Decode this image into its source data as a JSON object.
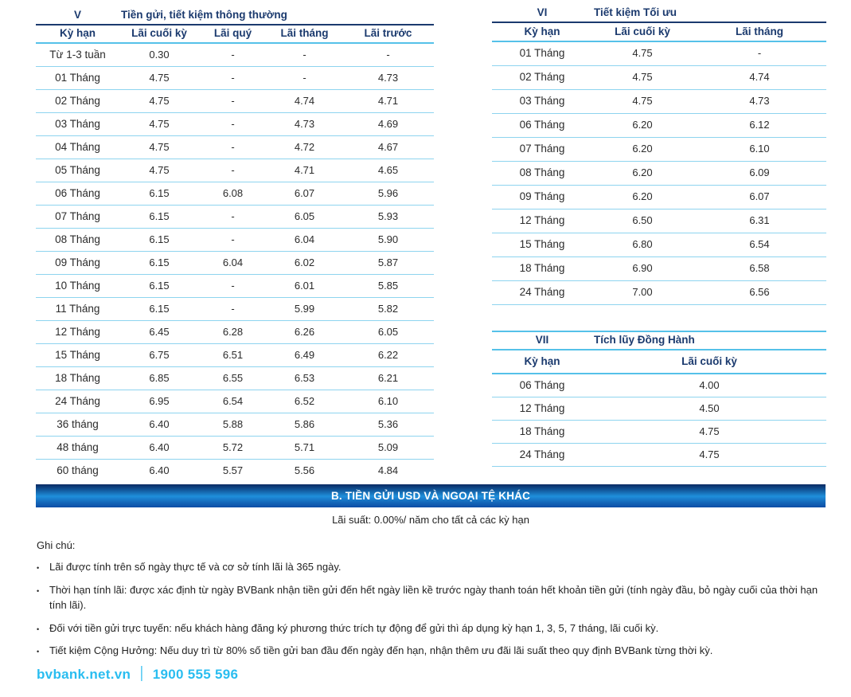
{
  "tables": {
    "v": {
      "section_id": "V",
      "section_title": "Tiền gửi, tiết kiệm thông thường",
      "columns": [
        "Kỳ hạn",
        "Lãi cuối kỳ",
        "Lãi quý",
        "Lãi tháng",
        "Lãi trước"
      ],
      "rows": [
        [
          "Từ 1-3 tuần",
          "0.30",
          "-",
          "-",
          "-"
        ],
        [
          "01 Tháng",
          "4.75",
          "-",
          "-",
          "4.73"
        ],
        [
          "02 Tháng",
          "4.75",
          "-",
          "4.74",
          "4.71"
        ],
        [
          "03 Tháng",
          "4.75",
          "-",
          "4.73",
          "4.69"
        ],
        [
          "04 Tháng",
          "4.75",
          "-",
          "4.72",
          "4.67"
        ],
        [
          "05 Tháng",
          "4.75",
          "-",
          "4.71",
          "4.65"
        ],
        [
          "06 Tháng",
          "6.15",
          "6.08",
          "6.07",
          "5.96"
        ],
        [
          "07 Tháng",
          "6.15",
          "-",
          "6.05",
          "5.93"
        ],
        [
          "08 Tháng",
          "6.15",
          "-",
          "6.04",
          "5.90"
        ],
        [
          "09 Tháng",
          "6.15",
          "6.04",
          "6.02",
          "5.87"
        ],
        [
          "10 Tháng",
          "6.15",
          "-",
          "6.01",
          "5.85"
        ],
        [
          "11 Tháng",
          "6.15",
          "-",
          "5.99",
          "5.82"
        ],
        [
          "12 Tháng",
          "6.45",
          "6.28",
          "6.26",
          "6.05"
        ],
        [
          "15 Tháng",
          "6.75",
          "6.51",
          "6.49",
          "6.22"
        ],
        [
          "18 Tháng",
          "6.85",
          "6.55",
          "6.53",
          "6.21"
        ],
        [
          "24 Tháng",
          "6.95",
          "6.54",
          "6.52",
          "6.10"
        ],
        [
          "36 tháng",
          "6.40",
          "5.88",
          "5.86",
          "5.36"
        ],
        [
          "48 tháng",
          "6.40",
          "5.72",
          "5.71",
          "5.09"
        ],
        [
          "60 tháng",
          "6.40",
          "5.57",
          "5.56",
          "4.84"
        ]
      ]
    },
    "vi": {
      "section_id": "VI",
      "section_title": "Tiết kiệm Tối ưu",
      "columns": [
        "Kỳ hạn",
        "Lãi cuối kỳ",
        "Lãi tháng"
      ],
      "rows": [
        [
          "01 Tháng",
          "4.75",
          "-"
        ],
        [
          "02 Tháng",
          "4.75",
          "4.74"
        ],
        [
          "03 Tháng",
          "4.75",
          "4.73"
        ],
        [
          "06 Tháng",
          "6.20",
          "6.12"
        ],
        [
          "07 Tháng",
          "6.20",
          "6.10"
        ],
        [
          "08 Tháng",
          "6.20",
          "6.09"
        ],
        [
          "09 Tháng",
          "6.20",
          "6.07"
        ],
        [
          "12 Tháng",
          "6.50",
          "6.31"
        ],
        [
          "15 Tháng",
          "6.80",
          "6.54"
        ],
        [
          "18 Tháng",
          "6.90",
          "6.58"
        ],
        [
          "24 Tháng",
          "7.00",
          "6.56"
        ]
      ]
    },
    "vii": {
      "section_id": "VII",
      "section_title": "Tích lũy Đồng Hành",
      "columns": [
        "Kỳ hạn",
        "Lãi cuối kỳ"
      ],
      "rows": [
        [
          "06 Tháng",
          "4.00"
        ],
        [
          "12 Tháng",
          "4.50"
        ],
        [
          "18 Tháng",
          "4.75"
        ],
        [
          "24 Tháng",
          "4.75"
        ]
      ]
    }
  },
  "banner": {
    "title": "B. TIỀN GỬI USD VÀ NGOẠI TỆ KHÁC"
  },
  "usd_note": "Lãi suất: 0.00%/ năm cho tất cả các kỳ hạn",
  "notes": {
    "heading": "Ghi chú:",
    "items": [
      "Lãi được tính trên số ngày thực tế và cơ sở tính lãi là 365 ngày.",
      "Thời hạn tính lãi: được xác định từ ngày BVBank nhận tiền gửi đến hết ngày liền kề trước ngày thanh toán hết khoản tiền gửi (tính ngày đầu, bỏ ngày cuối của thời hạn tính lãi).",
      "Đối với tiền gửi trực tuyến: nếu khách hàng đăng ký phương thức trích tự động để gửi thì áp dụng kỳ hạn 1, 3, 5, 7 tháng, lãi cuối kỳ.",
      "Tiết kiệm Cộng Hưởng: Nếu duy trì từ 80% số tiền gửi ban đầu đến ngày đến hạn, nhận thêm ưu đãi lãi suất theo quy định BVBank từng thời kỳ."
    ]
  },
  "footer": {
    "website": "bvbank.net.vn",
    "separator": "|",
    "phone": "1900 555 596"
  },
  "colors": {
    "navy_text": "#1b3a6e",
    "cyan_line": "#55c1e9",
    "banner_top": "#0a2a63",
    "banner_mid": "#1f8fdb",
    "banner_bottom": "#0d4da5",
    "footer_cyan": "#29bdf0"
  }
}
